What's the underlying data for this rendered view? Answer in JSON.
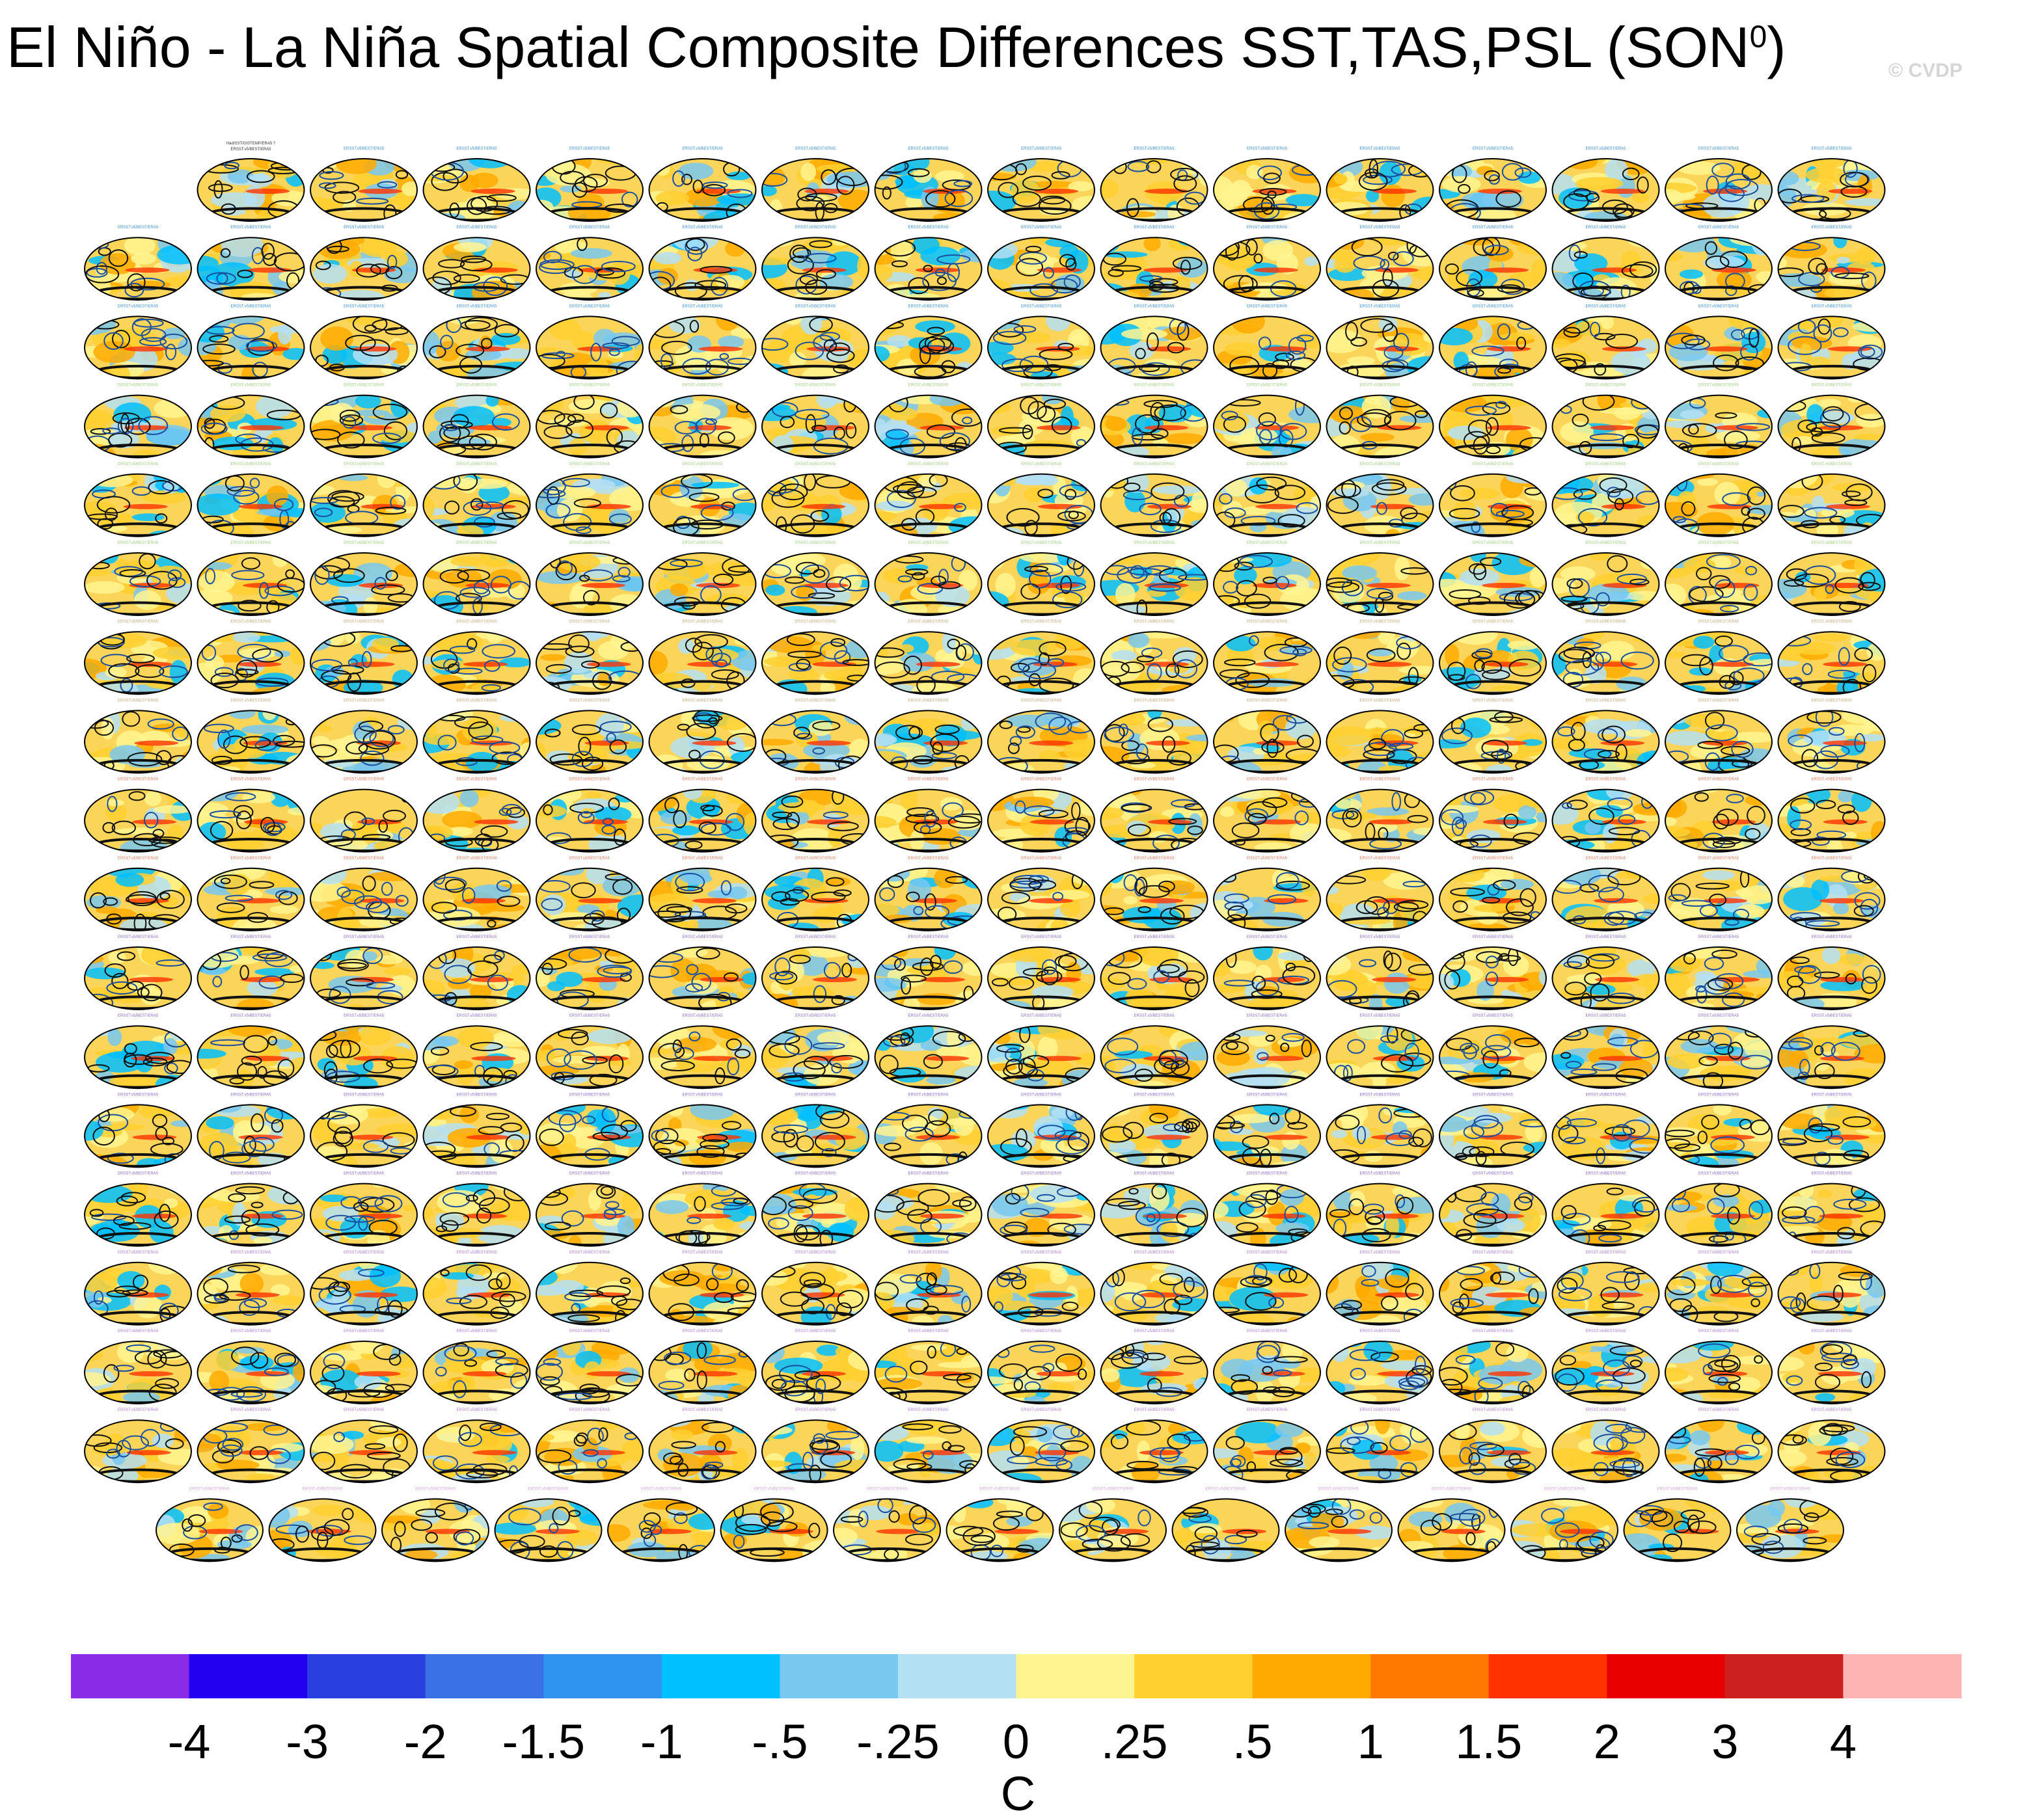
{
  "title": {
    "main": "El Niño - La Niña Spatial Composite Differences SST,TAS,PSL (SON",
    "superscript": "0",
    "close": ")"
  },
  "watermark": "© CVDP",
  "panel_grid": {
    "rows": 18,
    "columns": 16,
    "first_row_columns": 15,
    "last_row_columns": 15,
    "panel_count": 286,
    "first_panel_label_lines": [
      "HadISST/GISTEMP/ERA5 ?",
      "ERSST.v5/BEST/ERA5"
    ],
    "panel_label_text": "ERSST.v5/BEST/ERA5",
    "row_label_colors": [
      "#3a8fd6",
      "#3a8fd6",
      "#3a8fd6",
      "#9bd07a",
      "#9bd07a",
      "#9bd07a",
      "#c8a878",
      "#c8a878",
      "#e07a5a",
      "#e07a5a",
      "#8c6ad0",
      "#8c6ad0",
      "#8c6ad0",
      "#8c6ad0",
      "#b07ad8",
      "#b07ad8",
      "#b07ad8",
      "#d8a0e0"
    ]
  },
  "chart_data": {
    "type": "heatmap",
    "description_units": "C",
    "colorbar": {
      "label": "C",
      "tick_labels": [
        "-4",
        "-3",
        "-2",
        "-1.5",
        "-1",
        "-.5",
        "-.25",
        "0",
        ".25",
        ".5",
        "1",
        "1.5",
        "2",
        "3",
        "4"
      ],
      "tick_values": [
        -4,
        -3,
        -2,
        -1.5,
        -1,
        -0.5,
        -0.25,
        0,
        0.25,
        0.5,
        1,
        1.5,
        2,
        3,
        4
      ],
      "colors": [
        "#8a2be8",
        "#2400f0",
        "#2a3fe0",
        "#3a72e6",
        "#2e94f0",
        "#00c0ff",
        "#78c8f0",
        "#b4e0f4",
        "#fff590",
        "#ffd030",
        "#ffaa00",
        "#ff7800",
        "#ff3200",
        "#e80000",
        "#cc2020",
        "#ffb4b4"
      ]
    }
  }
}
